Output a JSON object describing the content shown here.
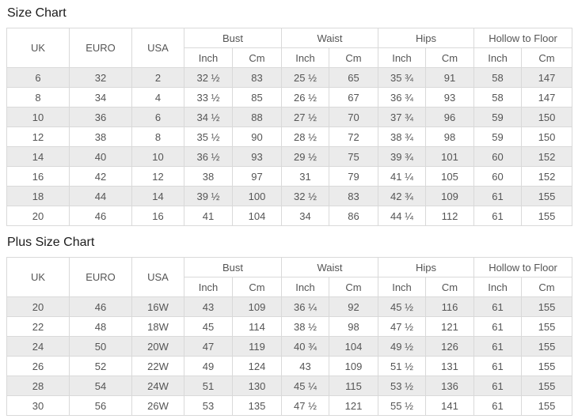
{
  "colors": {
    "stripe_row": "#ebebeb",
    "table_border": "#d9d9d9",
    "cell_text": "#555555",
    "title_text": "#1c1c1c",
    "background": "#ffffff"
  },
  "headers": {
    "uk": "UK",
    "euro": "EURO",
    "usa": "USA",
    "groups": [
      "Bust",
      "Waist",
      "Hips",
      "Hollow to Floor"
    ],
    "units": {
      "inch": "Inch",
      "cm": "Cm"
    }
  },
  "size_chart": {
    "title": "Size Chart",
    "rows": [
      [
        "6",
        "32",
        "2",
        "32 ½",
        "83",
        "25 ½",
        "65",
        "35 ¾",
        "91",
        "58",
        "147"
      ],
      [
        "8",
        "34",
        "4",
        "33 ½",
        "85",
        "26 ½",
        "67",
        "36 ¾",
        "93",
        "58",
        "147"
      ],
      [
        "10",
        "36",
        "6",
        "34 ½",
        "88",
        "27 ½",
        "70",
        "37 ¾",
        "96",
        "59",
        "150"
      ],
      [
        "12",
        "38",
        "8",
        "35 ½",
        "90",
        "28 ½",
        "72",
        "38 ¾",
        "98",
        "59",
        "150"
      ],
      [
        "14",
        "40",
        "10",
        "36 ½",
        "93",
        "29 ½",
        "75",
        "39 ¾",
        "101",
        "60",
        "152"
      ],
      [
        "16",
        "42",
        "12",
        "38",
        "97",
        "31",
        "79",
        "41 ¼",
        "105",
        "60",
        "152"
      ],
      [
        "18",
        "44",
        "14",
        "39 ½",
        "100",
        "32 ½",
        "83",
        "42 ¾",
        "109",
        "61",
        "155"
      ],
      [
        "20",
        "46",
        "16",
        "41",
        "104",
        "34",
        "86",
        "44 ¼",
        "112",
        "61",
        "155"
      ]
    ]
  },
  "plus_size_chart": {
    "title": "Plus Size Chart",
    "rows": [
      [
        "20",
        "46",
        "16W",
        "43",
        "109",
        "36 ¼",
        "92",
        "45 ½",
        "116",
        "61",
        "155"
      ],
      [
        "22",
        "48",
        "18W",
        "45",
        "114",
        "38 ½",
        "98",
        "47 ½",
        "121",
        "61",
        "155"
      ],
      [
        "24",
        "50",
        "20W",
        "47",
        "119",
        "40 ¾",
        "104",
        "49 ½",
        "126",
        "61",
        "155"
      ],
      [
        "26",
        "52",
        "22W",
        "49",
        "124",
        "43",
        "109",
        "51 ½",
        "131",
        "61",
        "155"
      ],
      [
        "28",
        "54",
        "24W",
        "51",
        "130",
        "45 ¼",
        "115",
        "53 ½",
        "136",
        "61",
        "155"
      ],
      [
        "30",
        "56",
        "26W",
        "53",
        "135",
        "47 ½",
        "121",
        "55 ½",
        "141",
        "61",
        "155"
      ]
    ]
  }
}
